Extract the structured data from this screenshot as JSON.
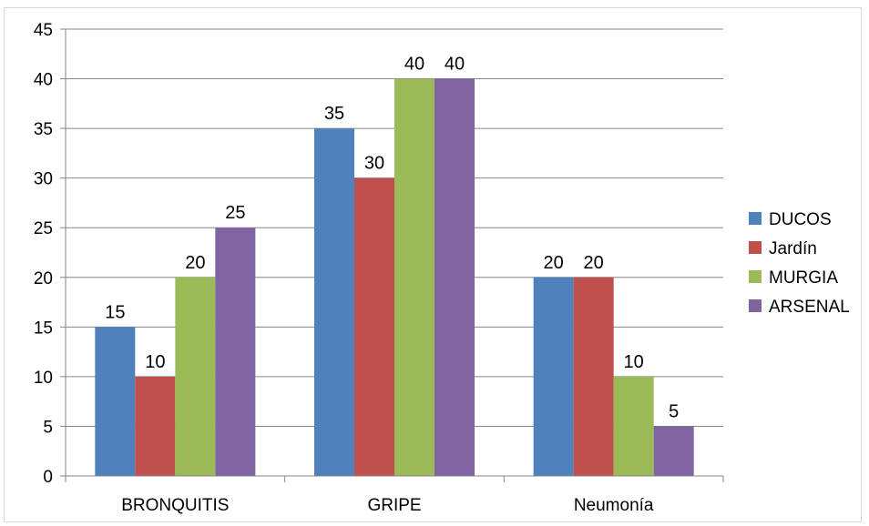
{
  "chart_data": {
    "type": "bar",
    "title": "",
    "xlabel": "",
    "ylabel": "",
    "categories": [
      "BRONQUITIS",
      "GRIPE",
      "Neumonía"
    ],
    "series": [
      {
        "name": "DUCOS",
        "values": [
          15,
          35,
          20
        ],
        "color": "#4f81bd"
      },
      {
        "name": "Jardín",
        "values": [
          10,
          30,
          20
        ],
        "color": "#c0504d"
      },
      {
        "name": "MURGIA",
        "values": [
          20,
          40,
          10
        ],
        "color": "#9bbb59"
      },
      {
        "name": "ARSENAL",
        "values": [
          25,
          40,
          5
        ],
        "color": "#8064a2"
      }
    ],
    "ylim": [
      0,
      45
    ],
    "yticks": [
      0,
      5,
      10,
      15,
      20,
      25,
      30,
      35,
      40,
      45
    ],
    "grid": true,
    "legend_position": "right",
    "data_labels": true
  }
}
